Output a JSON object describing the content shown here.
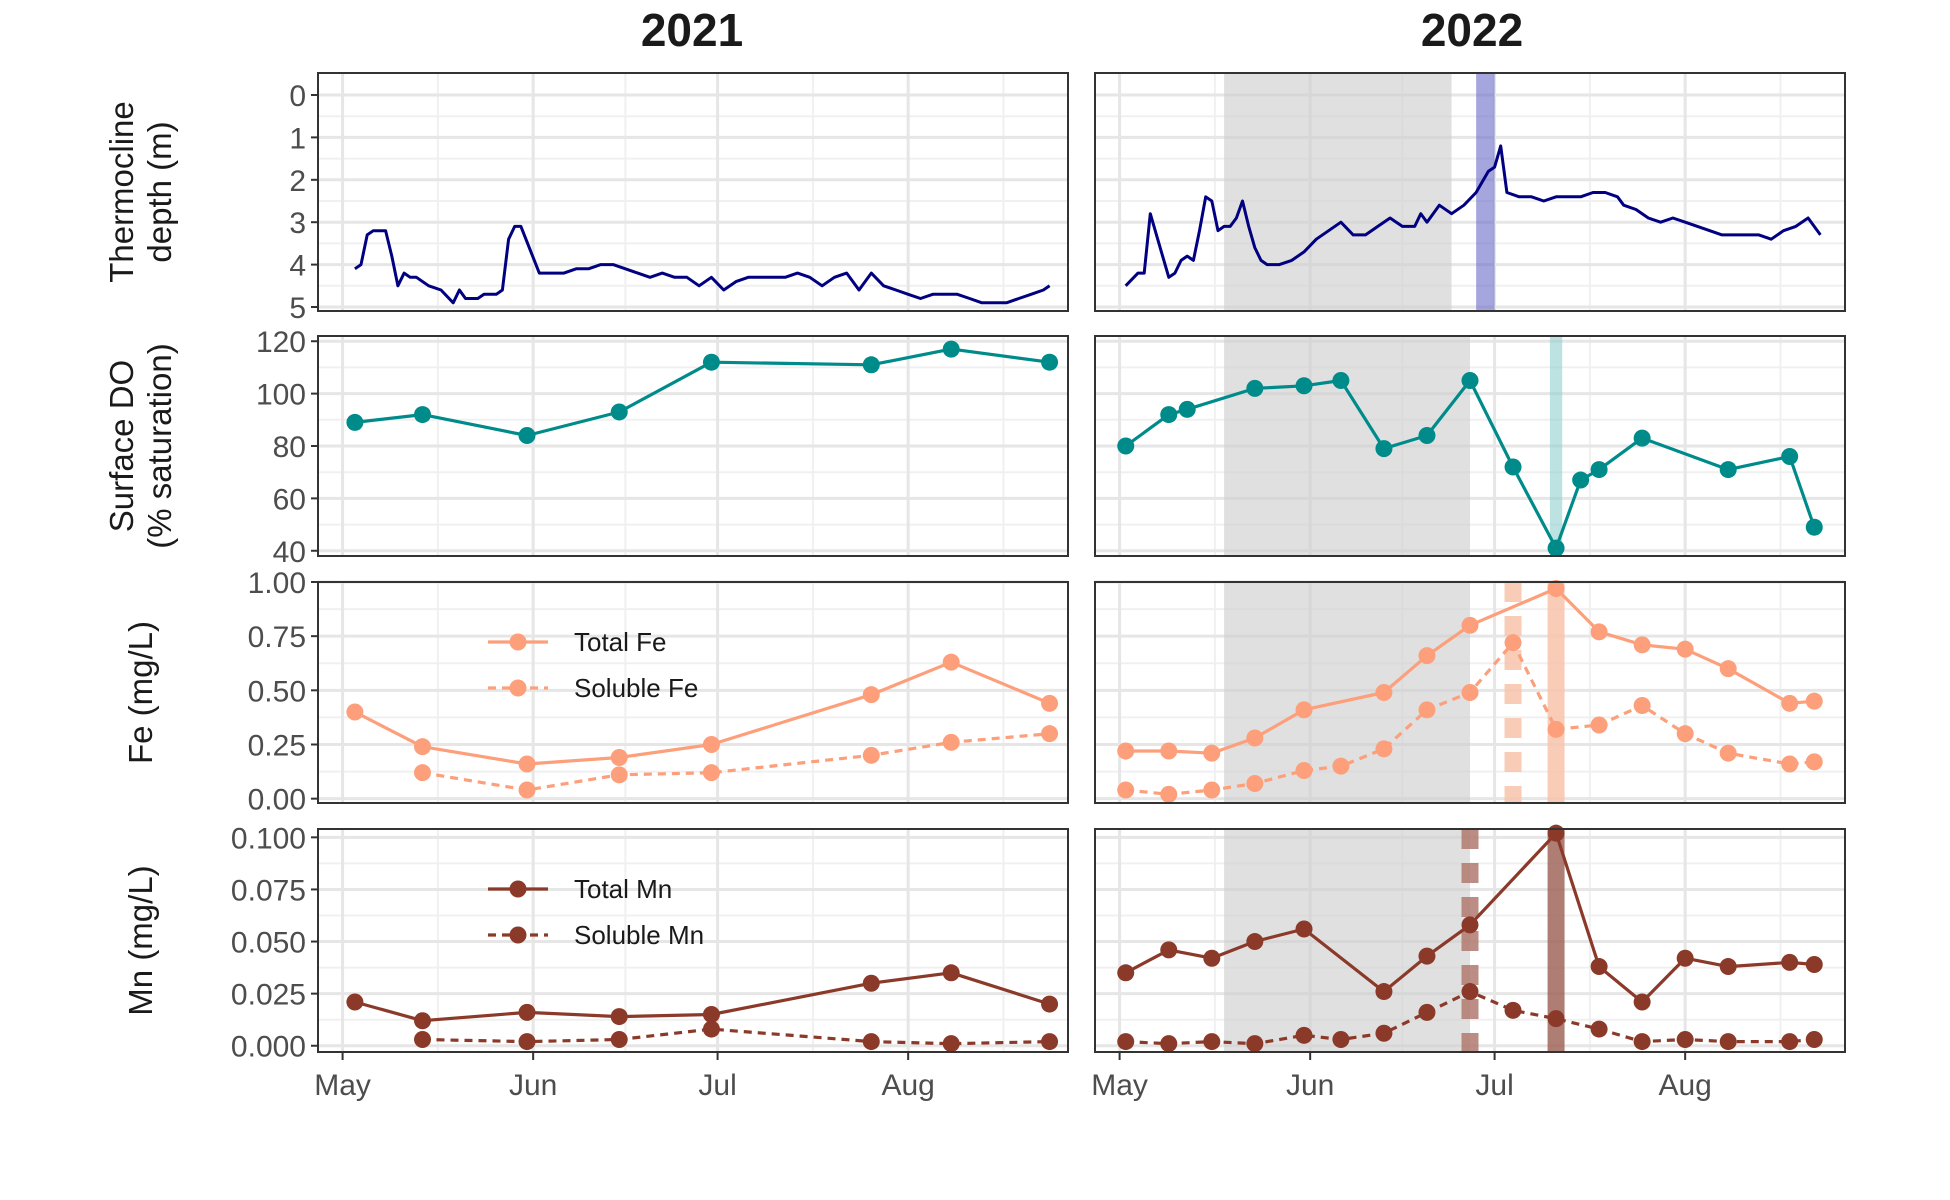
{
  "figure": {
    "col_titles": [
      "2021",
      "2022"
    ]
  },
  "chart_data": [
    {
      "type": "line",
      "panel": "thermocline-2021",
      "ylabel": [
        "Thermocline",
        "depth (m)"
      ],
      "y_reversed": true,
      "ylim": [
        0,
        5
      ],
      "yticks": [
        "0",
        "1",
        "2",
        "3",
        "4",
        "5"
      ],
      "xlim": [
        "2021-04-27",
        "2021-08-27"
      ],
      "xticks": [
        {
          "date": "2021-05-01",
          "label": "May"
        },
        {
          "date": "2021-06-01",
          "label": "Jun"
        },
        {
          "date": "2021-07-01",
          "label": "Jul"
        },
        {
          "date": "2021-08-01",
          "label": "Aug"
        }
      ],
      "series": [
        {
          "color": "#000080",
          "markers": false,
          "dashed": false,
          "x": [
            "2021-05-03",
            "2021-05-04",
            "2021-05-05",
            "2021-05-06",
            "2021-05-08",
            "2021-05-09",
            "2021-05-10",
            "2021-05-11",
            "2021-05-12",
            "2021-05-13",
            "2021-05-15",
            "2021-05-17",
            "2021-05-19",
            "2021-05-20",
            "2021-05-21",
            "2021-05-22",
            "2021-05-23",
            "2021-05-24",
            "2021-05-26",
            "2021-05-27",
            "2021-05-28",
            "2021-05-29",
            "2021-05-30",
            "2021-06-02",
            "2021-06-04",
            "2021-06-06",
            "2021-06-08",
            "2021-06-10",
            "2021-06-12",
            "2021-06-14",
            "2021-06-16",
            "2021-06-18",
            "2021-06-20",
            "2021-06-22",
            "2021-06-24",
            "2021-06-26",
            "2021-06-28",
            "2021-06-30",
            "2021-07-02",
            "2021-07-04",
            "2021-07-06",
            "2021-07-08",
            "2021-07-10",
            "2021-07-12",
            "2021-07-14",
            "2021-07-16",
            "2021-07-18",
            "2021-07-20",
            "2021-07-22",
            "2021-07-24",
            "2021-07-26",
            "2021-07-28",
            "2021-07-30",
            "2021-08-01",
            "2021-08-03",
            "2021-08-05",
            "2021-08-07",
            "2021-08-09",
            "2021-08-11",
            "2021-08-13",
            "2021-08-15",
            "2021-08-17",
            "2021-08-19",
            "2021-08-21",
            "2021-08-23",
            "2021-08-24"
          ],
          "y": [
            4.1,
            4.0,
            3.3,
            3.2,
            3.2,
            3.8,
            4.5,
            4.2,
            4.3,
            4.3,
            4.5,
            4.6,
            4.9,
            4.6,
            4.8,
            4.8,
            4.8,
            4.7,
            4.7,
            4.6,
            3.4,
            3.1,
            3.1,
            4.2,
            4.2,
            4.2,
            4.1,
            4.1,
            4.0,
            4.0,
            4.1,
            4.2,
            4.3,
            4.2,
            4.3,
            4.3,
            4.5,
            4.3,
            4.6,
            4.4,
            4.3,
            4.3,
            4.3,
            4.3,
            4.2,
            4.3,
            4.5,
            4.3,
            4.2,
            4.6,
            4.2,
            4.5,
            4.6,
            4.7,
            4.8,
            4.7,
            4.7,
            4.7,
            4.8,
            4.9,
            4.9,
            4.9,
            4.8,
            4.7,
            4.6,
            4.5
          ]
        }
      ],
      "shade": [],
      "vlines": []
    },
    {
      "type": "line",
      "panel": "thermocline-2022",
      "y_reversed": true,
      "ylim": [
        0,
        5
      ],
      "xlim": [
        "2022-04-27",
        "2022-08-27"
      ],
      "xticks": [
        {
          "date": "2022-05-01",
          "label": "May"
        },
        {
          "date": "2022-06-01",
          "label": "Jun"
        },
        {
          "date": "2022-07-01",
          "label": "Jul"
        },
        {
          "date": "2022-08-01",
          "label": "Aug"
        }
      ],
      "series": [
        {
          "color": "#000080",
          "markers": false,
          "dashed": false,
          "x": [
            "2022-05-02",
            "2022-05-04",
            "2022-05-05",
            "2022-05-06",
            "2022-05-08",
            "2022-05-09",
            "2022-05-10",
            "2022-05-11",
            "2022-05-12",
            "2022-05-13",
            "2022-05-14",
            "2022-05-15",
            "2022-05-16",
            "2022-05-17",
            "2022-05-18",
            "2022-05-19",
            "2022-05-20",
            "2022-05-21",
            "2022-05-22",
            "2022-05-23",
            "2022-05-24",
            "2022-05-25",
            "2022-05-27",
            "2022-05-29",
            "2022-05-31",
            "2022-06-02",
            "2022-06-04",
            "2022-06-06",
            "2022-06-08",
            "2022-06-10",
            "2022-06-12",
            "2022-06-14",
            "2022-06-16",
            "2022-06-18",
            "2022-06-19",
            "2022-06-20",
            "2022-06-22",
            "2022-06-24",
            "2022-06-26",
            "2022-06-28",
            "2022-06-30",
            "2022-07-01",
            "2022-07-02",
            "2022-07-03",
            "2022-07-05",
            "2022-07-07",
            "2022-07-09",
            "2022-07-11",
            "2022-07-13",
            "2022-07-15",
            "2022-07-17",
            "2022-07-19",
            "2022-07-21",
            "2022-07-22",
            "2022-07-24",
            "2022-07-26",
            "2022-07-28",
            "2022-07-30",
            "2022-08-01",
            "2022-08-03",
            "2022-08-05",
            "2022-08-07",
            "2022-08-09",
            "2022-08-11",
            "2022-08-13",
            "2022-08-15",
            "2022-08-17",
            "2022-08-19",
            "2022-08-21",
            "2022-08-23"
          ],
          "y": [
            4.5,
            4.2,
            4.2,
            2.8,
            3.8,
            4.3,
            4.2,
            3.9,
            3.8,
            3.9,
            3.2,
            2.4,
            2.5,
            3.2,
            3.1,
            3.1,
            2.9,
            2.5,
            3.1,
            3.6,
            3.9,
            4.0,
            4.0,
            3.9,
            3.7,
            3.4,
            3.2,
            3.0,
            3.3,
            3.3,
            3.1,
            2.9,
            3.1,
            3.1,
            2.8,
            3.0,
            2.6,
            2.8,
            2.6,
            2.3,
            1.8,
            1.7,
            1.2,
            2.3,
            2.4,
            2.4,
            2.5,
            2.4,
            2.4,
            2.4,
            2.3,
            2.3,
            2.4,
            2.6,
            2.7,
            2.9,
            3.0,
            2.9,
            3.0,
            3.1,
            3.2,
            3.3,
            3.3,
            3.3,
            3.3,
            3.4,
            3.2,
            3.1,
            2.9,
            3.3
          ]
        }
      ],
      "shade": [
        {
          "from": "2022-05-18",
          "to": "2022-06-24",
          "color": "#d0d0d0"
        },
        {
          "from": "2022-06-28",
          "to": "2022-07-01",
          "color": "#6a6ac8"
        }
      ],
      "vlines": []
    },
    {
      "type": "line",
      "panel": "do-2021",
      "ylabel": [
        "Surface DO",
        "(% saturation)"
      ],
      "ylim": [
        38,
        122
      ],
      "yticks": [
        {
          "v": 40,
          "label": "40"
        },
        {
          "v": 60,
          "label": "60"
        },
        {
          "v": 80,
          "label": "80"
        },
        {
          "v": 100,
          "label": "100"
        },
        {
          "v": 120,
          "label": "120"
        }
      ],
      "xlim": [
        "2021-04-27",
        "2021-08-27"
      ],
      "series": [
        {
          "color": "#008b8b",
          "markers": true,
          "dashed": false,
          "x": [
            "2021-05-03",
            "2021-05-14",
            "2021-05-31",
            "2021-06-15",
            "2021-06-30",
            "2021-07-26",
            "2021-08-08",
            "2021-08-24"
          ],
          "y": [
            89,
            92,
            84,
            93,
            112,
            111,
            117,
            112
          ]
        }
      ],
      "shade": [],
      "vlines": []
    },
    {
      "type": "line",
      "panel": "do-2022",
      "ylim": [
        38,
        122
      ],
      "xlim": [
        "2022-04-27",
        "2022-08-27"
      ],
      "series": [
        {
          "color": "#008b8b",
          "markers": true,
          "dashed": false,
          "x": [
            "2022-05-02",
            "2022-05-09",
            "2022-05-12",
            "2022-05-23",
            "2022-05-31",
            "2022-06-06",
            "2022-06-13",
            "2022-06-20",
            "2022-06-27",
            "2022-07-04",
            "2022-07-11",
            "2022-07-15",
            "2022-07-18",
            "2022-07-25",
            "2022-08-08",
            "2022-08-18",
            "2022-08-22"
          ],
          "y": [
            80,
            92,
            94,
            102,
            103,
            105,
            79,
            84,
            105,
            72,
            41,
            67,
            71,
            83,
            71,
            76,
            49
          ]
        }
      ],
      "shade": [
        {
          "from": "2022-05-18",
          "to": "2022-06-27",
          "color": "#d0d0d0"
        },
        {
          "from": "2022-07-10",
          "to": "2022-07-12",
          "color": "#8fcfcf"
        }
      ],
      "vlines": []
    },
    {
      "type": "line",
      "panel": "fe-2021",
      "ylabel": [
        "Fe (mg/L)"
      ],
      "ylim": [
        -0.02,
        1.0
      ],
      "yticks": [
        {
          "v": 0,
          "label": "0.00"
        },
        {
          "v": 0.25,
          "label": "0.25"
        },
        {
          "v": 0.5,
          "label": "0.50"
        },
        {
          "v": 0.75,
          "label": "0.75"
        },
        {
          "v": 1.0,
          "label": "1.00"
        }
      ],
      "xlim": [
        "2021-04-27",
        "2021-08-27"
      ],
      "legend": {
        "placement": "upper-middle",
        "entries": [
          {
            "label": "Total Fe",
            "dashed": false
          },
          {
            "label": "Soluble Fe",
            "dashed": true
          }
        ]
      },
      "series": [
        {
          "name": "Total Fe",
          "color": "#fc9f7a",
          "markers": true,
          "dashed": false,
          "x": [
            "2021-05-03",
            "2021-05-14",
            "2021-05-31",
            "2021-06-15",
            "2021-06-30",
            "2021-07-26",
            "2021-08-08",
            "2021-08-24"
          ],
          "y": [
            0.4,
            0.24,
            0.16,
            0.19,
            0.25,
            0.48,
            0.63,
            0.44
          ]
        },
        {
          "name": "Soluble Fe",
          "color": "#fc9f7a",
          "markers": true,
          "dashed": true,
          "x": [
            "2021-05-14",
            "2021-05-31",
            "2021-06-15",
            "2021-06-30",
            "2021-07-26",
            "2021-08-08",
            "2021-08-24"
          ],
          "y": [
            0.12,
            0.04,
            0.11,
            0.12,
            0.2,
            0.26,
            0.3
          ]
        }
      ],
      "shade": [],
      "vlines": []
    },
    {
      "type": "line",
      "panel": "fe-2022",
      "ylim": [
        -0.02,
        1.0
      ],
      "xlim": [
        "2022-04-27",
        "2022-08-27"
      ],
      "series": [
        {
          "color": "#fc9f7a",
          "markers": true,
          "dashed": false,
          "x": [
            "2022-05-02",
            "2022-05-09",
            "2022-05-16",
            "2022-05-23",
            "2022-05-31",
            "2022-06-13",
            "2022-06-20",
            "2022-06-27",
            "2022-07-11",
            "2022-07-18",
            "2022-07-25",
            "2022-08-01",
            "2022-08-08",
            "2022-08-18",
            "2022-08-22"
          ],
          "y": [
            0.22,
            0.22,
            0.21,
            0.28,
            0.41,
            0.49,
            0.66,
            0.8,
            0.97,
            0.77,
            0.71,
            0.69,
            0.6,
            0.44,
            0.45
          ]
        },
        {
          "color": "#fc9f7a",
          "markers": true,
          "dashed": true,
          "x": [
            "2022-05-02",
            "2022-05-09",
            "2022-05-16",
            "2022-05-23",
            "2022-05-31",
            "2022-06-06",
            "2022-06-13",
            "2022-06-20",
            "2022-06-27",
            "2022-07-04",
            "2022-07-11",
            "2022-07-18",
            "2022-07-25",
            "2022-08-01",
            "2022-08-08",
            "2022-08-18",
            "2022-08-22"
          ],
          "y": [
            0.04,
            0.02,
            0.04,
            0.07,
            0.13,
            0.15,
            0.23,
            0.41,
            0.49,
            0.72,
            0.32,
            0.34,
            0.43,
            0.3,
            0.21,
            0.16,
            0.17
          ]
        }
      ],
      "shade": [
        {
          "from": "2022-05-18",
          "to": "2022-06-27",
          "color": "#d0d0d0"
        }
      ],
      "vlines": [
        {
          "date": "2022-07-04",
          "color": "#f8c4ac",
          "dashed": true
        },
        {
          "date": "2022-07-11",
          "color": "#f8c4ac",
          "dashed": false
        }
      ]
    },
    {
      "type": "line",
      "panel": "mn-2021",
      "ylabel": [
        "Mn (mg/L)"
      ],
      "ylim": [
        -0.003,
        0.104
      ],
      "yticks": [
        {
          "v": 0,
          "label": "0.000"
        },
        {
          "v": 0.025,
          "label": "0.025"
        },
        {
          "v": 0.05,
          "label": "0.050"
        },
        {
          "v": 0.075,
          "label": "0.075"
        },
        {
          "v": 0.1,
          "label": "0.100"
        }
      ],
      "xlim": [
        "2021-04-27",
        "2021-08-27"
      ],
      "legend": {
        "placement": "upper-middle",
        "entries": [
          {
            "label": "Total Mn",
            "dashed": false
          },
          {
            "label": "Soluble Mn",
            "dashed": true
          }
        ]
      },
      "series": [
        {
          "name": "Total Mn",
          "color": "#8b3a2a",
          "markers": true,
          "dashed": false,
          "x": [
            "2021-05-03",
            "2021-05-14",
            "2021-05-31",
            "2021-06-15",
            "2021-06-30",
            "2021-07-26",
            "2021-08-08",
            "2021-08-24"
          ],
          "y": [
            0.021,
            0.012,
            0.016,
            0.014,
            0.015,
            0.03,
            0.035,
            0.02
          ]
        },
        {
          "name": "Soluble Mn",
          "color": "#8b3a2a",
          "markers": true,
          "dashed": true,
          "x": [
            "2021-05-14",
            "2021-05-31",
            "2021-06-15",
            "2021-06-30",
            "2021-07-26",
            "2021-08-08",
            "2021-08-24"
          ],
          "y": [
            0.003,
            0.002,
            0.003,
            0.008,
            0.002,
            0.001,
            0.002
          ]
        }
      ],
      "shade": [],
      "vlines": []
    },
    {
      "type": "line",
      "panel": "mn-2022",
      "ylim": [
        -0.003,
        0.104
      ],
      "xlim": [
        "2022-04-27",
        "2022-08-27"
      ],
      "series": [
        {
          "color": "#8b3a2a",
          "markers": true,
          "dashed": false,
          "x": [
            "2022-05-02",
            "2022-05-09",
            "2022-05-16",
            "2022-05-23",
            "2022-05-31",
            "2022-06-13",
            "2022-06-20",
            "2022-06-27",
            "2022-07-11",
            "2022-07-18",
            "2022-07-25",
            "2022-08-01",
            "2022-08-08",
            "2022-08-18",
            "2022-08-22"
          ],
          "y": [
            0.035,
            0.046,
            0.042,
            0.05,
            0.056,
            0.026,
            0.043,
            0.058,
            0.102,
            0.038,
            0.021,
            0.042,
            0.038,
            0.04,
            0.039
          ]
        },
        {
          "color": "#8b3a2a",
          "markers": true,
          "dashed": true,
          "x": [
            "2022-05-02",
            "2022-05-09",
            "2022-05-16",
            "2022-05-23",
            "2022-05-31",
            "2022-06-06",
            "2022-06-13",
            "2022-06-20",
            "2022-06-27",
            "2022-07-04",
            "2022-07-11",
            "2022-07-18",
            "2022-07-25",
            "2022-08-01",
            "2022-08-08",
            "2022-08-18",
            "2022-08-22"
          ],
          "y": [
            0.002,
            0.001,
            0.002,
            0.001,
            0.005,
            0.003,
            0.006,
            0.016,
            0.026,
            0.017,
            0.013,
            0.008,
            0.002,
            0.003,
            0.002,
            0.002,
            0.003
          ]
        }
      ],
      "shade": [
        {
          "from": "2022-05-18",
          "to": "2022-06-27",
          "color": "#d0d0d0"
        }
      ],
      "vlines": [
        {
          "date": "2022-06-27",
          "color": "#b07a6f",
          "dashed": true
        },
        {
          "date": "2022-07-11",
          "color": "#a0685c",
          "dashed": false
        }
      ]
    }
  ]
}
